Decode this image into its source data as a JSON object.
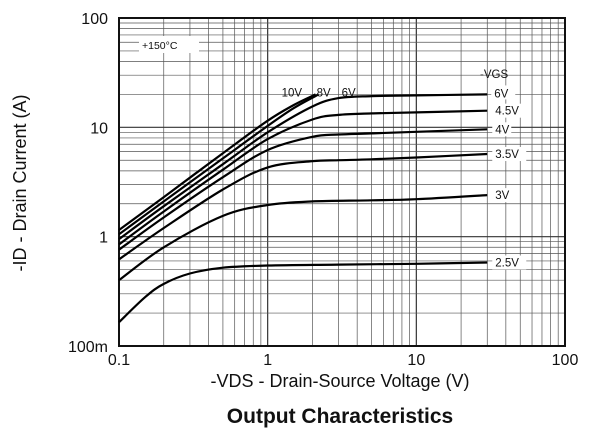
{
  "chart_data": {
    "type": "line",
    "title": "Output Characteristics",
    "xlabel": "-VDS - Drain-Source Voltage (V)",
    "ylabel": "-ID - Drain Current (A)",
    "x_scale": "log",
    "y_scale": "log",
    "xlim": [
      0.1,
      100
    ],
    "ylim": [
      0.1,
      100
    ],
    "x_ticks": [
      {
        "value": 0.1,
        "label": "0.1"
      },
      {
        "value": 1,
        "label": "1"
      },
      {
        "value": 10,
        "label": "10"
      },
      {
        "value": 100,
        "label": "100"
      }
    ],
    "y_ticks": [
      {
        "value": 0.1,
        "label": "100m"
      },
      {
        "value": 1,
        "label": "1"
      },
      {
        "value": 10,
        "label": "10"
      },
      {
        "value": 100,
        "label": "100"
      }
    ],
    "grid": true,
    "annotation": "+150°C",
    "legend_title": "-VGS",
    "series": [
      {
        "name": "10V",
        "x": [
          0.1,
          0.2,
          0.5,
          1,
          1.5,
          2.1
        ],
        "y": [
          1.15,
          2.3,
          5.8,
          11.5,
          16,
          20
        ]
      },
      {
        "name": "8V",
        "x": [
          0.1,
          0.2,
          0.5,
          1,
          1.5,
          2.2
        ],
        "y": [
          1.05,
          2.1,
          5.2,
          10.3,
          15,
          20
        ]
      },
      {
        "name": "6V",
        "x": [
          0.1,
          0.2,
          0.5,
          1,
          2,
          3,
          5,
          10,
          30
        ],
        "y": [
          0.95,
          1.9,
          4.6,
          9.0,
          15.5,
          18.5,
          19.3,
          19.6,
          20
        ]
      },
      {
        "name": "4.5V",
        "x": [
          0.1,
          0.2,
          0.5,
          1,
          2,
          3,
          5,
          10,
          30
        ],
        "y": [
          0.85,
          1.7,
          4.1,
          7.8,
          11.8,
          13.0,
          13.4,
          13.7,
          14.2
        ]
      },
      {
        "name": "4V",
        "x": [
          0.1,
          0.2,
          0.5,
          1,
          2,
          3,
          5,
          10,
          30
        ],
        "y": [
          0.76,
          1.5,
          3.5,
          6.2,
          8.2,
          8.6,
          8.8,
          9.1,
          9.6
        ]
      },
      {
        "name": "3.5V",
        "x": [
          0.1,
          0.2,
          0.5,
          1,
          2,
          3,
          5,
          10,
          30
        ],
        "y": [
          0.62,
          1.2,
          2.7,
          4.3,
          4.9,
          5.0,
          5.1,
          5.3,
          5.7
        ]
      },
      {
        "name": "3V",
        "x": [
          0.1,
          0.2,
          0.5,
          1,
          2,
          5,
          10,
          30
        ],
        "y": [
          0.4,
          0.8,
          1.55,
          1.95,
          2.1,
          2.15,
          2.2,
          2.4
        ]
      },
      {
        "name": "2.5V",
        "x": [
          0.1,
          0.15,
          0.2,
          0.3,
          0.5,
          1,
          3,
          10,
          30
        ],
        "y": [
          0.165,
          0.28,
          0.37,
          0.46,
          0.52,
          0.545,
          0.555,
          0.565,
          0.58
        ]
      }
    ]
  }
}
